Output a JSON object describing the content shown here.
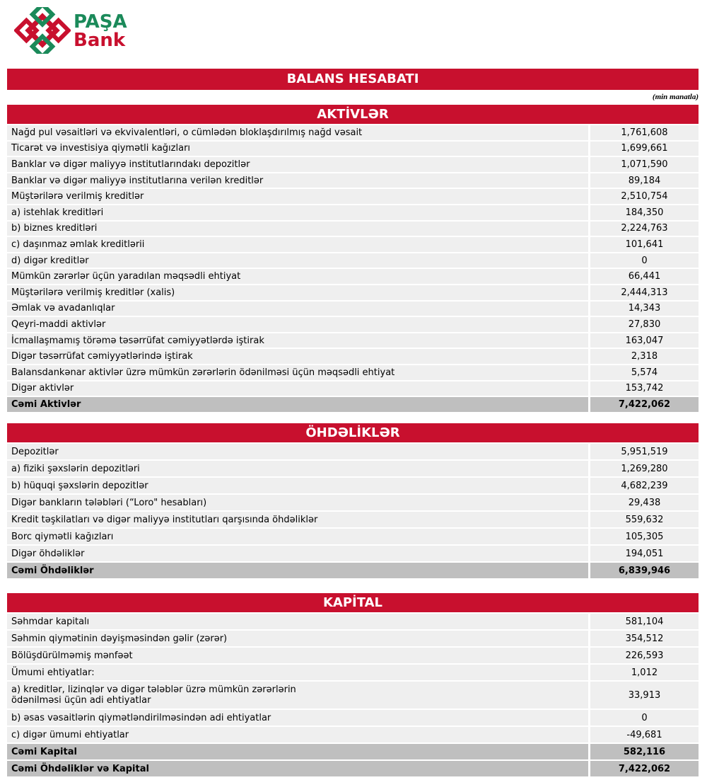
{
  "logo": {
    "line1": "PAŞA",
    "line2": "Bank"
  },
  "title": "BALANS HESABATI",
  "unit": "(min manatla)",
  "sections": [
    {
      "title": "AKTİVLƏR",
      "rows": [
        [
          "Nağd pul vəsaitləri və ekvivalentləri, o cümlədən bloklaşdırılmış nağd vəsait",
          "1,761,608"
        ],
        [
          "Ticarət və investisiya qiymətli kağızları",
          "1,699,661"
        ],
        [
          "Banklar və digər maliyyə institutlarındakı depozitlər",
          "1,071,590"
        ],
        [
          "Banklar və digər maliyyə institutlarına verilən kreditlər",
          "89,184"
        ],
        [
          "Müştərilərə verilmiş kreditlər",
          "2,510,754"
        ],
        [
          "a) istehlak kreditləri",
          "184,350"
        ],
        [
          "b) biznes kreditləri",
          "2,224,763"
        ],
        [
          "c) daşınmaz əmlak kreditlərii",
          "101,641"
        ],
        [
          "d) digər kreditlər",
          "0"
        ],
        [
          "Mümkün zərərlər üçün yaradılan məqsədli ehtiyat",
          "66,441"
        ],
        [
          "Müştərilərə verilmiş kreditlər (xalis)",
          "2,444,313"
        ],
        [
          "Əmlak və avadanlıqlar",
          "14,343"
        ],
        [
          "Qeyri-maddi aktivlər",
          "27,830"
        ],
        [
          "İcmallaşmamış törəmə təsərrüfat cəmiyyətlərdə iştirak",
          "163,047"
        ],
        [
          "Digər təsərrüfat cəmiyyətlərində iştirak",
          "2,318"
        ],
        [
          "Balansdankənar aktivlər üzrə mümkün zərərlərin ödənilməsi üçün məqsədli ehtiyat",
          "5,574"
        ],
        [
          "Digər aktivlər",
          "153,742"
        ]
      ],
      "totals": [
        [
          "Cəmi Aktivlər",
          "7,422,062"
        ]
      ]
    },
    {
      "title": "ÖHDƏLİKLƏR",
      "rows": [
        [
          "Depozitlər",
          "5,951,519"
        ],
        [
          "a) fiziki şəxslərin depozitləri",
          "1,269,280"
        ],
        [
          "b) hüquqi şəxslərin depozitlər",
          "4,682,239"
        ],
        [
          "Digər bankların tələbləri (“Loro\" hesabları)",
          "29,438"
        ],
        [
          "Kredit təşkilatları və digər maliyyə institutları qarşısında öhdəliklər",
          "559,632"
        ],
        [
          "Borc qiymətli kağızları",
          "105,305"
        ],
        [
          "Digər öhdəliklər",
          "194,051"
        ]
      ],
      "totals": [
        [
          "Cəmi Öhdəliklər",
          "6,839,946"
        ]
      ]
    },
    {
      "title": "KAPİTAL",
      "rows": [
        [
          "Səhmdar kapitalı",
          "581,104"
        ],
        [
          "Səhmin qiymətinin dəyişməsindən gəlir (zərər)",
          "354,512"
        ],
        [
          "Bölüşdürülməmiş mənfəət",
          "226,593"
        ],
        [
          "Ümumi ehtiyatlar:",
          "1,012"
        ],
        [
          "a) kreditlər, lizinqlər və digər tələblər üzrə mümkün zərərlərin ödənilməsi üçün adi ehtiyatlar",
          "33,913"
        ],
        [
          "b) əsas vəsaitlərin qiymətləndirilməsindən adi ehtiyatlar",
          "0"
        ],
        [
          "c) digər ümumi ehtiyatlar",
          "-49,681"
        ]
      ],
      "totals": [
        [
          "Cəmi Kapital",
          "582,116"
        ],
        [
          "Cəmi Öhdəliklər və Kapital",
          "7,422,062"
        ]
      ]
    }
  ]
}
